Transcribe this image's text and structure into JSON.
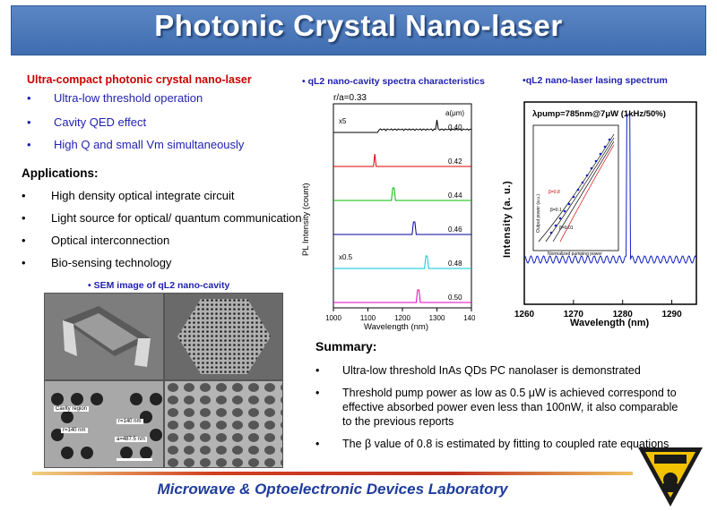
{
  "title": "Photonic Crystal Nano-laser",
  "left": {
    "heading": "Ultra-compact photonic crystal nano-laser",
    "features": [
      "Ultra-low threshold operation",
      "Cavity QED effect",
      "High Q and small Vm simultaneously"
    ],
    "applications_heading": "Applications:",
    "applications": [
      "High density optical integrate circuit",
      "Light source for optical/ quantum communication",
      "Optical interconnection",
      "Bio-sensing technology"
    ],
    "sem_caption": "SEM image of qL2 nano-cavity",
    "sem_labels": [
      "Cavity region",
      "r=140 nm",
      "r=140 nm",
      "a=487.5 nm"
    ]
  },
  "bullet": "•",
  "spectra": {
    "caption": "qL2 nano-cavity spectra characteristics",
    "ra": "r/a=0.33",
    "a_label": "a(μm)",
    "ylabel": "PL Intensity (count)",
    "xlabel": "Wavelength (nm)",
    "x_ticks": [
      "1000",
      "1100",
      "1200",
      "1300",
      "1400"
    ],
    "traces": [
      {
        "a": "0.40",
        "color": "#000000",
        "scale": "x5"
      },
      {
        "a": "0.42",
        "color": "#dd0000",
        "scale": ""
      },
      {
        "a": "0.44",
        "color": "#00bb00",
        "scale": ""
      },
      {
        "a": "0.46",
        "color": "#000099",
        "scale": ""
      },
      {
        "a": "0.48",
        "color": "#00c8d8",
        "scale": "x0.5"
      },
      {
        "a": "0.50",
        "color": "#e000c0",
        "scale": ""
      }
    ]
  },
  "lasing": {
    "caption": "qL2 nano-laser lasing spectrum",
    "pump": "λpump=785nm@7μW (1kHz/50%)",
    "ylabel": "Intensity (a. u.)",
    "xlabel": "Wavelength (nm)",
    "x_ticks": [
      "1260",
      "1270",
      "1280",
      "1290"
    ],
    "inset_ylabel": "Output power (a.u.)",
    "inset_xlabel": "Normalized pumping power",
    "inset_beta": [
      "β=0.8",
      "β=0.1",
      "β=0.01"
    ]
  },
  "summary": {
    "heading": "Summary:",
    "items": [
      "Ultra-low threshold InAs QDs PC nanolaser is demonstrated",
      "Threshold pump power as low as 0.5 μW is achieved correspond to effective absorbed power even less than 100nW, it also comparable to the previous reports",
      "The β value of 0.8 is estimated by fitting to coupled rate equations"
    ]
  },
  "footer": "Microwave & Optoelectronic Devices Laboratory",
  "colors": {
    "title_bg": "#4a78bc",
    "accent_red": "#cc0000",
    "accent_blue": "#1f1fb0",
    "footer_blue": "#1f3c9c"
  }
}
